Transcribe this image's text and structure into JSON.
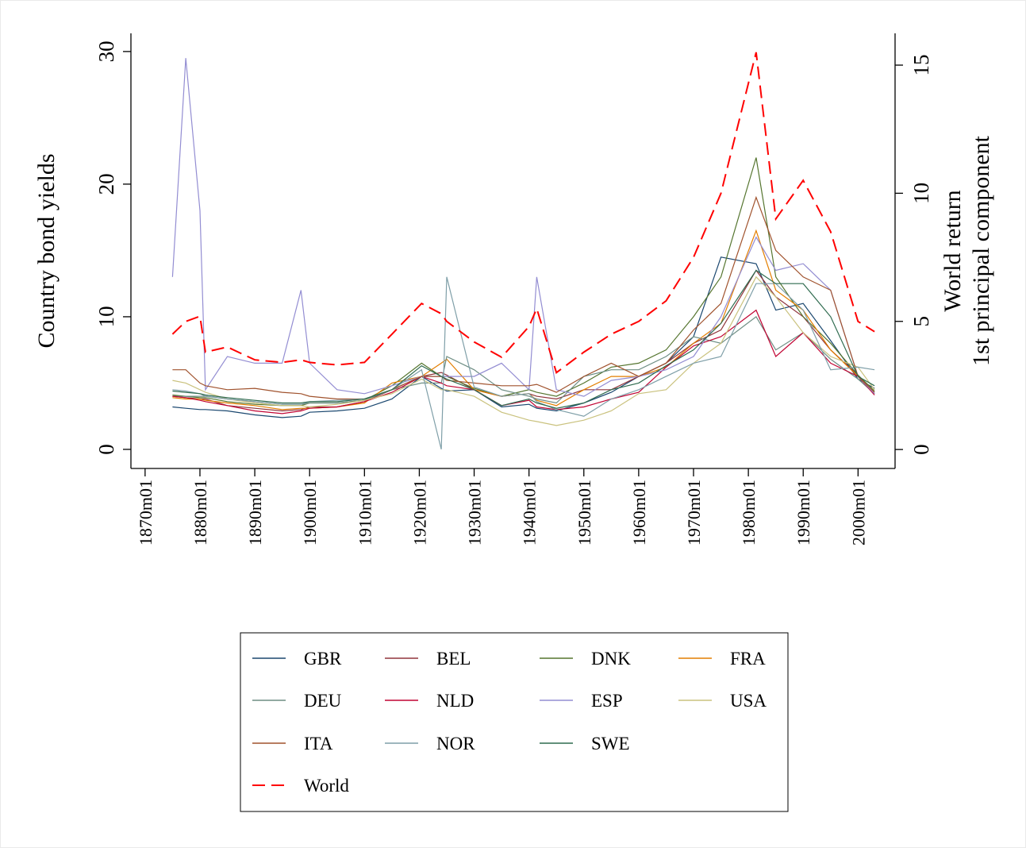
{
  "chart_data": {
    "type": "line",
    "ylabel": "Country bond yields",
    "y2label": [
      "World return",
      "1st principal component"
    ],
    "x": [
      "1875m01",
      "1877m06",
      "1880m01",
      "1881m01",
      "1885m01",
      "1890m01",
      "1895m01",
      "1898m06",
      "1900m01",
      "1905m01",
      "1910m01",
      "1915m01",
      "1920m06",
      "1924m01",
      "1925m01",
      "1930m01",
      "1935m01",
      "1940m01",
      "1941m06",
      "1945m01",
      "1950m01",
      "1955m01",
      "1960m01",
      "1965m01",
      "1970m01",
      "1975m01",
      "1981m06",
      "1985m01",
      "1990m01",
      "1995m01",
      "2000m01",
      "2003m01"
    ],
    "xlim": [
      "1867m06",
      "2006m10"
    ],
    "xticks": [
      "1870m01",
      "1880m01",
      "1890m01",
      "1900m01",
      "1910m01",
      "1920m01",
      "1930m01",
      "1940m01",
      "1950m01",
      "1960m01",
      "1970m01",
      "1980m01",
      "1990m01",
      "2000m01"
    ],
    "ylim": [
      -1.44,
      31.37
    ],
    "yticks": [
      0,
      10,
      20,
      30
    ],
    "y2lim": [
      -0.74,
      16.24
    ],
    "y2ticks": [
      0,
      5,
      10,
      15
    ],
    "legend_columns": 4,
    "series": [
      {
        "name": "GBR",
        "color": "#1a476f",
        "values": [
          3.2,
          3.1,
          3.0,
          3.0,
          2.9,
          2.6,
          2.4,
          2.5,
          2.8,
          2.9,
          3.1,
          3.8,
          5.5,
          4.6,
          4.4,
          4.5,
          3.2,
          3.4,
          3.1,
          2.9,
          3.5,
          4.3,
          5.5,
          6.5,
          8.5,
          14.5,
          14.0,
          10.5,
          11.0,
          8.2,
          5.3,
          4.6
        ]
      },
      {
        "name": "BEL",
        "color": "#90353b",
        "values": [
          4.0,
          3.9,
          3.8,
          3.8,
          3.3,
          3.1,
          2.9,
          3.0,
          3.2,
          3.2,
          3.6,
          4.5,
          5.5,
          5.8,
          5.6,
          4.5,
          4.0,
          4.2,
          4.0,
          3.8,
          4.5,
          4.5,
          5.5,
          6.5,
          8.0,
          9.0,
          13.5,
          11.5,
          10.0,
          7.5,
          5.6,
          4.2
        ]
      },
      {
        "name": "DNK",
        "color": "#55752f",
        "values": [
          4.1,
          4.0,
          3.9,
          3.9,
          3.6,
          3.4,
          3.3,
          3.3,
          3.5,
          3.5,
          3.7,
          4.8,
          6.5,
          5.5,
          5.5,
          4.6,
          4.0,
          4.5,
          4.3,
          4.0,
          5.0,
          6.2,
          6.5,
          7.5,
          10.0,
          13.0,
          22.0,
          13.0,
          10.0,
          8.0,
          5.6,
          4.4
        ]
      },
      {
        "name": "FRA",
        "color": "#e37e00",
        "values": [
          3.9,
          3.8,
          3.8,
          3.7,
          3.5,
          3.3,
          3.0,
          3.1,
          3.1,
          3.2,
          3.5,
          5.0,
          5.5,
          6.5,
          6.8,
          4.5,
          4.0,
          4.2,
          3.7,
          3.3,
          4.5,
          5.5,
          5.5,
          6.2,
          8.0,
          9.5,
          16.5,
          12.0,
          10.5,
          7.5,
          5.5,
          4.2
        ]
      },
      {
        "name": "DEU",
        "color": "#6e8e84",
        "values": [
          4.0,
          4.0,
          4.0,
          4.0,
          3.8,
          3.6,
          3.4,
          3.4,
          3.5,
          3.5,
          3.7,
          4.5,
          5.0,
          5.0,
          7.0,
          6.0,
          4.5,
          4.0,
          3.8,
          3.5,
          5.5,
          6.0,
          6.0,
          7.0,
          8.5,
          8.0,
          10.0,
          7.5,
          8.8,
          6.8,
          5.3,
          4.2
        ]
      },
      {
        "name": "NLD",
        "color": "#c10534",
        "values": [
          4.0,
          3.9,
          3.7,
          3.6,
          3.3,
          2.9,
          2.7,
          2.9,
          3.1,
          3.2,
          3.6,
          4.3,
          5.5,
          5.0,
          4.8,
          4.5,
          3.3,
          3.7,
          3.2,
          3.0,
          3.2,
          3.8,
          4.3,
          6.2,
          7.8,
          8.5,
          10.5,
          7.0,
          8.8,
          6.5,
          5.5,
          4.1
        ]
      },
      {
        "name": "ESP",
        "color": "#938dd2",
        "values": [
          13.0,
          29.5,
          18.0,
          4.5,
          7.0,
          6.5,
          6.5,
          12.0,
          6.5,
          4.5,
          4.2,
          4.8,
          5.5,
          5.5,
          5.5,
          5.5,
          6.5,
          4.5,
          13.0,
          4.5,
          4.0,
          5.2,
          5.5,
          6.0,
          7.0,
          10.0,
          16.0,
          13.5,
          14.0,
          12.0,
          5.5,
          4.2
        ]
      },
      {
        "name": "USA",
        "color": "#cac27e",
        "values": [
          5.2,
          5.0,
          4.5,
          4.3,
          3.8,
          3.5,
          3.3,
          3.3,
          3.2,
          3.4,
          3.7,
          4.2,
          5.3,
          4.5,
          4.5,
          4.0,
          2.8,
          2.2,
          2.1,
          1.8,
          2.2,
          2.9,
          4.2,
          4.5,
          6.5,
          8.0,
          13.0,
          11.5,
          8.8,
          7.0,
          6.2,
          4.5
        ]
      },
      {
        "name": "ITA",
        "color": "#a0522d",
        "values": [
          6.0,
          6.0,
          5.0,
          4.8,
          4.5,
          4.6,
          4.3,
          4.2,
          4.0,
          3.8,
          3.8,
          4.5,
          5.5,
          5.5,
          5.2,
          5.0,
          4.8,
          4.8,
          4.9,
          4.3,
          5.5,
          6.5,
          5.5,
          6.5,
          9.0,
          11.0,
          19.0,
          15.0,
          13.0,
          12.0,
          5.5,
          4.3
        ]
      },
      {
        "name": "NOR",
        "color": "#7f9fa8",
        "values": [
          4.5,
          4.4,
          4.2,
          4.0,
          3.8,
          3.6,
          3.4,
          3.4,
          3.6,
          3.7,
          3.8,
          4.5,
          6.0,
          0.0,
          13.0,
          4.7,
          4.0,
          4.2,
          3.6,
          3.0,
          2.5,
          3.8,
          4.5,
          5.5,
          6.5,
          7.0,
          12.5,
          12.5,
          10.5,
          6.0,
          6.2,
          6.0
        ]
      },
      {
        "name": "SWE",
        "color": "#2f6b4f",
        "values": [
          4.4,
          4.3,
          4.2,
          4.1,
          3.9,
          3.7,
          3.5,
          3.5,
          3.6,
          3.6,
          3.8,
          4.5,
          6.3,
          5.5,
          5.3,
          4.5,
          3.3,
          3.8,
          3.5,
          3.1,
          3.5,
          4.5,
          5.0,
          6.3,
          7.5,
          9.5,
          13.5,
          12.5,
          12.5,
          10.0,
          5.5,
          4.8
        ]
      },
      {
        "name": "World",
        "color": "#ff0000",
        "dashed": true,
        "axis": "y2",
        "values": [
          4.5,
          5.0,
          5.2,
          3.8,
          4.0,
          3.5,
          3.4,
          3.5,
          3.4,
          3.3,
          3.4,
          4.5,
          5.7,
          5.3,
          5.0,
          4.2,
          3.6,
          4.8,
          5.5,
          3.0,
          3.8,
          4.5,
          5.0,
          5.8,
          7.5,
          10.0,
          15.5,
          9.0,
          10.5,
          8.5,
          5.0,
          4.6
        ]
      }
    ]
  }
}
